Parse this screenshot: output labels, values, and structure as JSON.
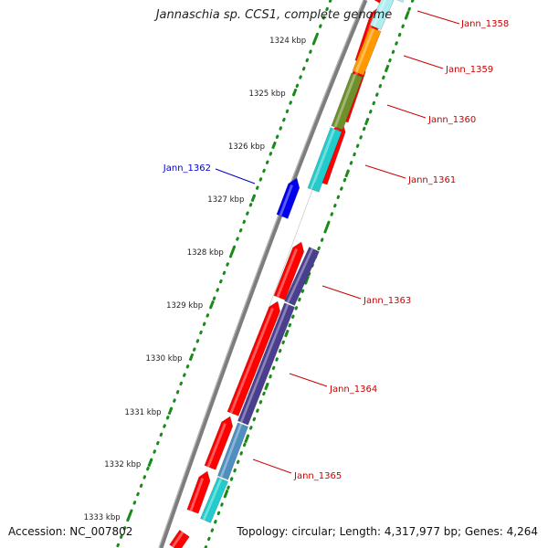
{
  "title": "Jannaschia sp. CCS1, complete genome",
  "footer": {
    "accession": "Accession: NC_007802",
    "topology": "Topology: circular; Length: 4,317,977 bp; Genes: 4,264"
  },
  "ruler": {
    "ticks": [
      {
        "label": "1324 kbp",
        "kbp": 1324
      },
      {
        "label": "1325 kbp",
        "kbp": 1325
      },
      {
        "label": "1326 kbp",
        "kbp": 1326
      },
      {
        "label": "1327 kbp",
        "kbp": 1327
      },
      {
        "label": "1328 kbp",
        "kbp": 1328
      },
      {
        "label": "1329 kbp",
        "kbp": 1329
      },
      {
        "label": "1330 kbp",
        "kbp": 1330
      },
      {
        "label": "1331 kbp",
        "kbp": 1331
      },
      {
        "label": "1332 kbp",
        "kbp": 1332
      },
      {
        "label": "1333 kbp",
        "kbp": 1333
      }
    ]
  },
  "gene_labels": [
    {
      "text": "Jann_1358",
      "color": "#cc0000"
    },
    {
      "text": "Jann_1359",
      "color": "#cc0000"
    },
    {
      "text": "Jann_1360",
      "color": "#cc0000"
    },
    {
      "text": "Jann_1361",
      "color": "#cc0000"
    },
    {
      "text": "Jann_1362",
      "color": "#0000cc"
    },
    {
      "text": "Jann_1363",
      "color": "#cc0000"
    },
    {
      "text": "Jann_1364",
      "color": "#cc0000"
    },
    {
      "text": "Jann_1365",
      "color": "#cc0000"
    }
  ],
  "colors": {
    "cds_forward": "#ff0000",
    "reverse_strand": "#0000ee",
    "backbone": "#888888",
    "ruler": "#1a8a1a",
    "cog_1358": "#aeeef0",
    "cog_1359": "#ff9900",
    "cog_1360": "#6e8f2a",
    "cog_1361": "#22cccc",
    "cog_1363": "#4a3f8f",
    "cog_1364": "#4a3f8f",
    "cog_1365_a": "#4f8fbf",
    "cog_1365_b": "#22cccc"
  }
}
